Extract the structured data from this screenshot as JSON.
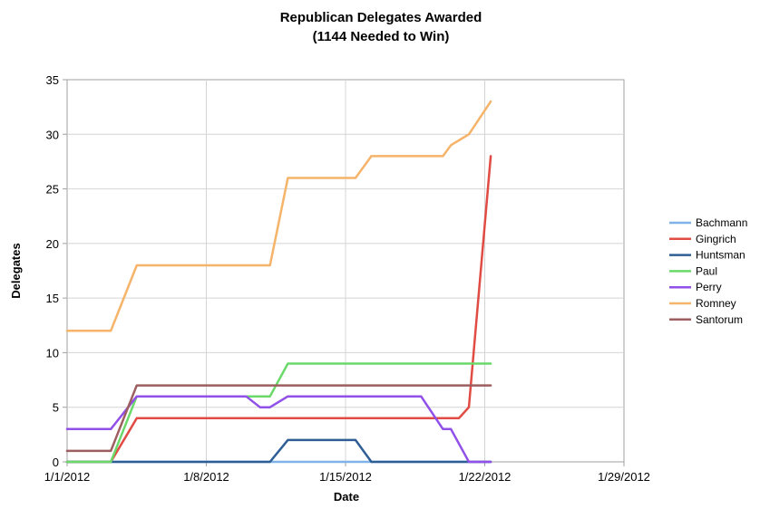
{
  "chart_data": {
    "type": "line",
    "title": "Republican Delegates Awarded",
    "subtitle": "(1144 Needed to Win)",
    "xlabel": "Date",
    "ylabel": "Delegates",
    "ylim": [
      0,
      35
    ],
    "yticks": [
      0,
      5,
      10,
      15,
      20,
      25,
      30,
      35
    ],
    "xlim": [
      "2012-01-01",
      "2012-01-29"
    ],
    "xticks": [
      {
        "date": "2012-01-01",
        "label": "1/1/2012"
      },
      {
        "date": "2012-01-08",
        "label": "1/8/2012"
      },
      {
        "date": "2012-01-15",
        "label": "1/15/2012"
      },
      {
        "date": "2012-01-22",
        "label": "1/22/2012"
      },
      {
        "date": "2012-01-29",
        "label": "1/29/2012"
      }
    ],
    "grid": true,
    "legend": "right",
    "series": [
      {
        "name": "Bachmann",
        "color": "#7fb3e8",
        "points": [
          [
            "2012-01-01",
            0
          ],
          [
            "2012-01-22.3",
            0
          ]
        ]
      },
      {
        "name": "Gingrich",
        "color": "#e04b43",
        "points": [
          [
            "2012-01-01",
            0
          ],
          [
            "2012-01-03.2",
            0
          ],
          [
            "2012-01-04.5",
            4
          ],
          [
            "2012-01-20.3",
            4
          ],
          [
            "2012-01-20.7",
            4
          ],
          [
            "2012-01-21.2",
            5
          ],
          [
            "2012-01-22.3",
            28
          ]
        ]
      },
      {
        "name": "Huntsman",
        "color": "#2f5e95",
        "points": [
          [
            "2012-01-01",
            0
          ],
          [
            "2012-01-11.2",
            0
          ],
          [
            "2012-01-12.1",
            2
          ],
          [
            "2012-01-15.5",
            2
          ],
          [
            "2012-01-16.3",
            0
          ],
          [
            "2012-01-22.3",
            0
          ]
        ]
      },
      {
        "name": "Paul",
        "color": "#6ad96a",
        "points": [
          [
            "2012-01-01",
            0
          ],
          [
            "2012-01-03.2",
            0
          ],
          [
            "2012-01-04.5",
            6
          ],
          [
            "2012-01-11.2",
            6
          ],
          [
            "2012-01-12.1",
            9
          ],
          [
            "2012-01-22.3",
            9
          ]
        ]
      },
      {
        "name": "Perry",
        "color": "#9150e8",
        "points": [
          [
            "2012-01-01",
            3
          ],
          [
            "2012-01-03.2",
            3
          ],
          [
            "2012-01-04.5",
            6
          ],
          [
            "2012-01-10.0",
            6
          ],
          [
            "2012-01-10.7",
            5
          ],
          [
            "2012-01-11.2",
            5
          ],
          [
            "2012-01-12.1",
            6
          ],
          [
            "2012-01-18.8",
            6
          ],
          [
            "2012-01-19.9",
            3
          ],
          [
            "2012-01-20.3",
            3
          ],
          [
            "2012-01-21.2",
            0
          ],
          [
            "2012-01-22.3",
            0
          ]
        ]
      },
      {
        "name": "Romney",
        "color": "#f6b36a",
        "points": [
          [
            "2012-01-01",
            12
          ],
          [
            "2012-01-03.2",
            12
          ],
          [
            "2012-01-04.5",
            18
          ],
          [
            "2012-01-11.2",
            18
          ],
          [
            "2012-01-12.1",
            26
          ],
          [
            "2012-01-15.5",
            26
          ],
          [
            "2012-01-16.3",
            28
          ],
          [
            "2012-01-19.9",
            28
          ],
          [
            "2012-01-20.3",
            29
          ],
          [
            "2012-01-21.2",
            30
          ],
          [
            "2012-01-22.3",
            33
          ]
        ]
      },
      {
        "name": "Santorum",
        "color": "#9c5e5e",
        "points": [
          [
            "2012-01-01",
            1
          ],
          [
            "2012-01-03.2",
            1
          ],
          [
            "2012-01-04.5",
            7
          ],
          [
            "2012-01-22.3",
            7
          ]
        ]
      }
    ]
  }
}
